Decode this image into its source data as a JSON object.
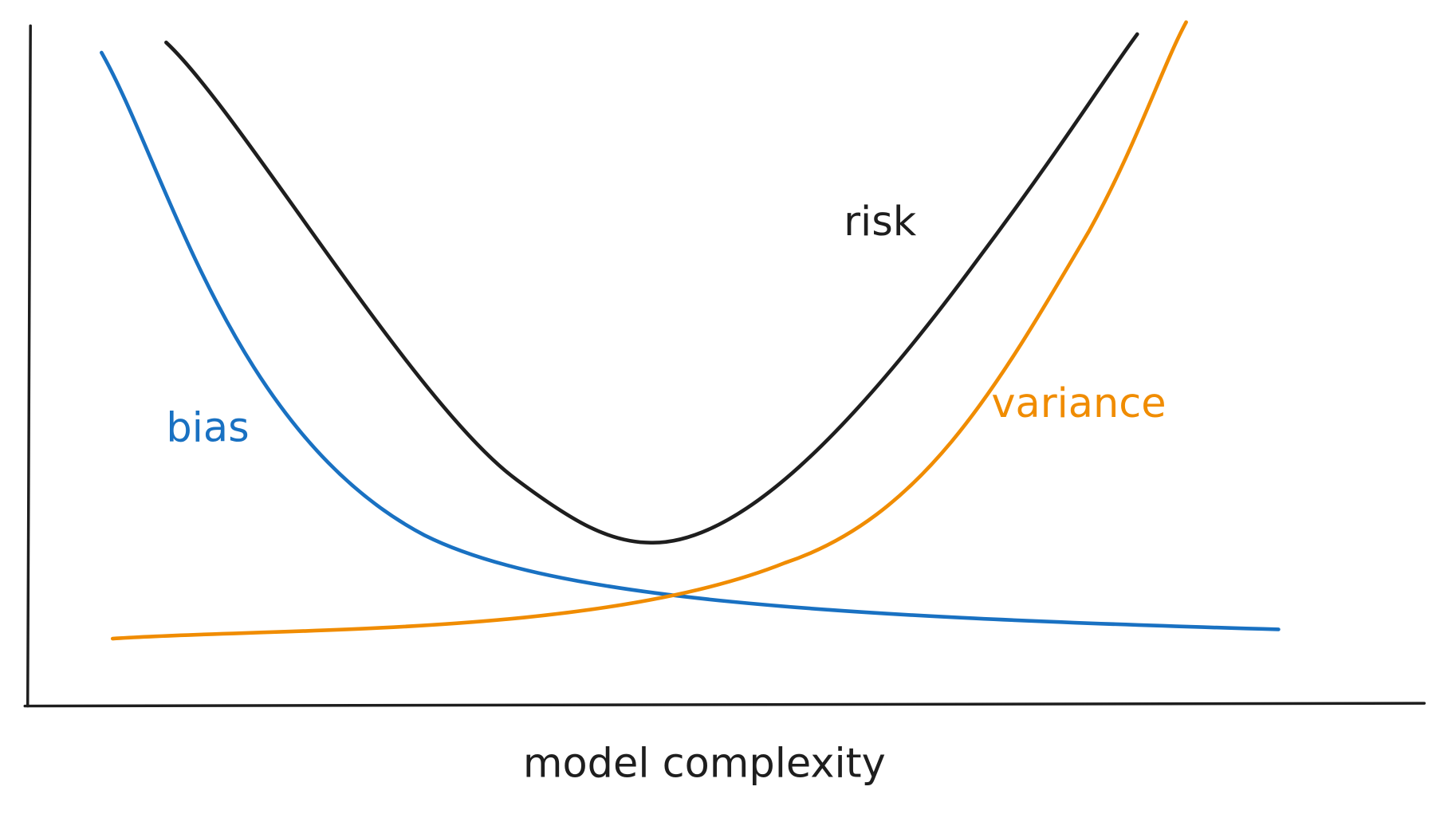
{
  "curves": [
    {
      "label": "risk"
    },
    {
      "label": "bias"
    },
    {
      "label": "variance"
    }
  ],
  "x_axis_label": "model complexity"
}
